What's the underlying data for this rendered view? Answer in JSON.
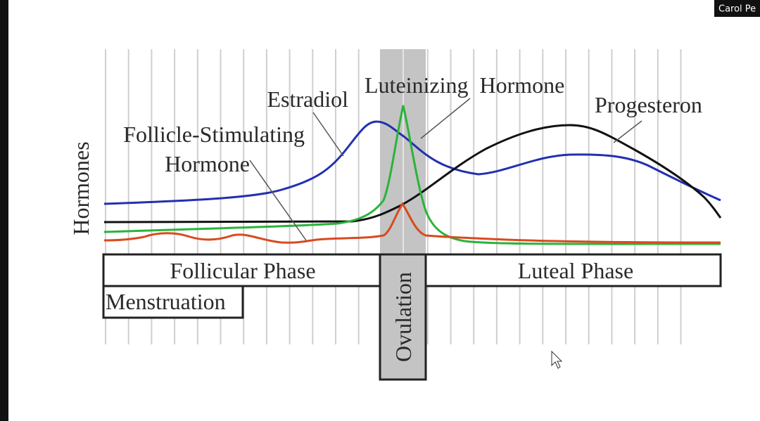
{
  "window": {
    "participant_name": "Carol Pe"
  },
  "diagram": {
    "y_axis_label": "Hormones",
    "curve_labels": {
      "estradiol": "Estradiol",
      "luteinizing": "Luteinizing  Hormone",
      "progesterone": "Progesteron",
      "fsh_line1": "Follicle-Stimulating",
      "fsh_line2": "Hormone"
    },
    "phases": {
      "follicular": "Follicular Phase",
      "luteal": "Luteal Phase",
      "menstruation": "Menstruation",
      "ovulation": "Ovulation"
    }
  }
}
